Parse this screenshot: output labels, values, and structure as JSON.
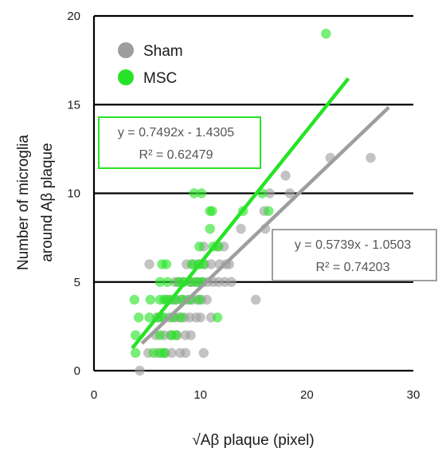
{
  "chart_data": {
    "type": "scatter",
    "title": "",
    "xlabel": "√Aβ plaque (pixel)",
    "ylabel_lines": [
      "Number  of microglia",
      "around  Aβ plaque"
    ],
    "xlim": [
      0,
      30
    ],
    "ylim": [
      0,
      20
    ],
    "x_ticks": [
      "0",
      "10",
      "20",
      "30"
    ],
    "y_ticks": [
      "0",
      "5",
      "10",
      "15",
      "20"
    ],
    "grid": "horizontal",
    "legend_position": "top-left",
    "series": [
      {
        "name": "Sham",
        "color": "#9e9e9e",
        "trendline": {
          "slope": 0.5739,
          "intercept": -1.0503,
          "x_range": [
            4.5,
            27.7
          ],
          "equation": "y = 0.5739x - 1.0503",
          "r2": "R² = 0.74203"
        },
        "points": [
          [
            4.3,
            0
          ],
          [
            5.1,
            1
          ],
          [
            6.0,
            1
          ],
          [
            6.7,
            1
          ],
          [
            7.3,
            1
          ],
          [
            8.1,
            1
          ],
          [
            8.6,
            1
          ],
          [
            10.3,
            1
          ],
          [
            5.8,
            2
          ],
          [
            6.6,
            2
          ],
          [
            7.2,
            2
          ],
          [
            7.8,
            2
          ],
          [
            8.6,
            2
          ],
          [
            9.1,
            2
          ],
          [
            5.9,
            3
          ],
          [
            6.4,
            3
          ],
          [
            7.1,
            3
          ],
          [
            7.6,
            3
          ],
          [
            8.0,
            3
          ],
          [
            8.5,
            3
          ],
          [
            9.0,
            3
          ],
          [
            9.6,
            3
          ],
          [
            10.0,
            3
          ],
          [
            11.0,
            3
          ],
          [
            6.8,
            4
          ],
          [
            7.3,
            4
          ],
          [
            7.7,
            4
          ],
          [
            8.2,
            4
          ],
          [
            8.7,
            4
          ],
          [
            9.2,
            4
          ],
          [
            9.7,
            4
          ],
          [
            10.1,
            4
          ],
          [
            10.6,
            4
          ],
          [
            15.2,
            4
          ],
          [
            7.6,
            5
          ],
          [
            8.0,
            5
          ],
          [
            8.4,
            5
          ],
          [
            9.0,
            5
          ],
          [
            9.4,
            5
          ],
          [
            9.8,
            5
          ],
          [
            10.2,
            5
          ],
          [
            10.7,
            5
          ],
          [
            11.2,
            5
          ],
          [
            11.7,
            5
          ],
          [
            12.3,
            5
          ],
          [
            12.9,
            5
          ],
          [
            5.2,
            6
          ],
          [
            8.7,
            6
          ],
          [
            9.3,
            6
          ],
          [
            9.9,
            6
          ],
          [
            10.4,
            6
          ],
          [
            11.0,
            6
          ],
          [
            11.8,
            6
          ],
          [
            12.4,
            6
          ],
          [
            12.7,
            6
          ],
          [
            10.3,
            7
          ],
          [
            11.6,
            7
          ],
          [
            12.2,
            7
          ],
          [
            13.8,
            8
          ],
          [
            16.1,
            8
          ],
          [
            16.0,
            9
          ],
          [
            16.5,
            10
          ],
          [
            18.4,
            10
          ],
          [
            18.0,
            11
          ],
          [
            22.2,
            12
          ],
          [
            26.0,
            12
          ]
        ]
      },
      {
        "name": "MSC",
        "color": "#27e327",
        "trendline": {
          "slope": 0.7492,
          "intercept": -1.4305,
          "x_range": [
            3.6,
            23.9
          ],
          "equation": "y = 0.7492x - 1.4305",
          "r2": "R² = 0.62479"
        },
        "points": [
          [
            3.9,
            1
          ],
          [
            5.6,
            1
          ],
          [
            6.3,
            1
          ],
          [
            6.6,
            1
          ],
          [
            3.9,
            2
          ],
          [
            6.2,
            2
          ],
          [
            7.3,
            2
          ],
          [
            7.7,
            2
          ],
          [
            4.2,
            3
          ],
          [
            5.2,
            3
          ],
          [
            6.1,
            3
          ],
          [
            6.6,
            3
          ],
          [
            7.4,
            3
          ],
          [
            8.2,
            3
          ],
          [
            11.6,
            3
          ],
          [
            3.8,
            4
          ],
          [
            5.3,
            4
          ],
          [
            6.2,
            4
          ],
          [
            6.6,
            4
          ],
          [
            7.0,
            4
          ],
          [
            7.6,
            4
          ],
          [
            8.3,
            4
          ],
          [
            9.0,
            4
          ],
          [
            9.9,
            4
          ],
          [
            6.2,
            5
          ],
          [
            6.9,
            5
          ],
          [
            7.9,
            5
          ],
          [
            8.4,
            5
          ],
          [
            9.1,
            5
          ],
          [
            9.7,
            5
          ],
          [
            10.2,
            5
          ],
          [
            6.4,
            6
          ],
          [
            6.8,
            6
          ],
          [
            9.2,
            6
          ],
          [
            9.8,
            6
          ],
          [
            10.3,
            6
          ],
          [
            9.9,
            7
          ],
          [
            11.2,
            7
          ],
          [
            11.7,
            7
          ],
          [
            10.9,
            8
          ],
          [
            10.9,
            9
          ],
          [
            11.1,
            9
          ],
          [
            14.0,
            9
          ],
          [
            9.4,
            10
          ],
          [
            10.1,
            10
          ],
          [
            15.8,
            10
          ],
          [
            16.4,
            9
          ],
          [
            21.8,
            19
          ]
        ]
      }
    ]
  }
}
